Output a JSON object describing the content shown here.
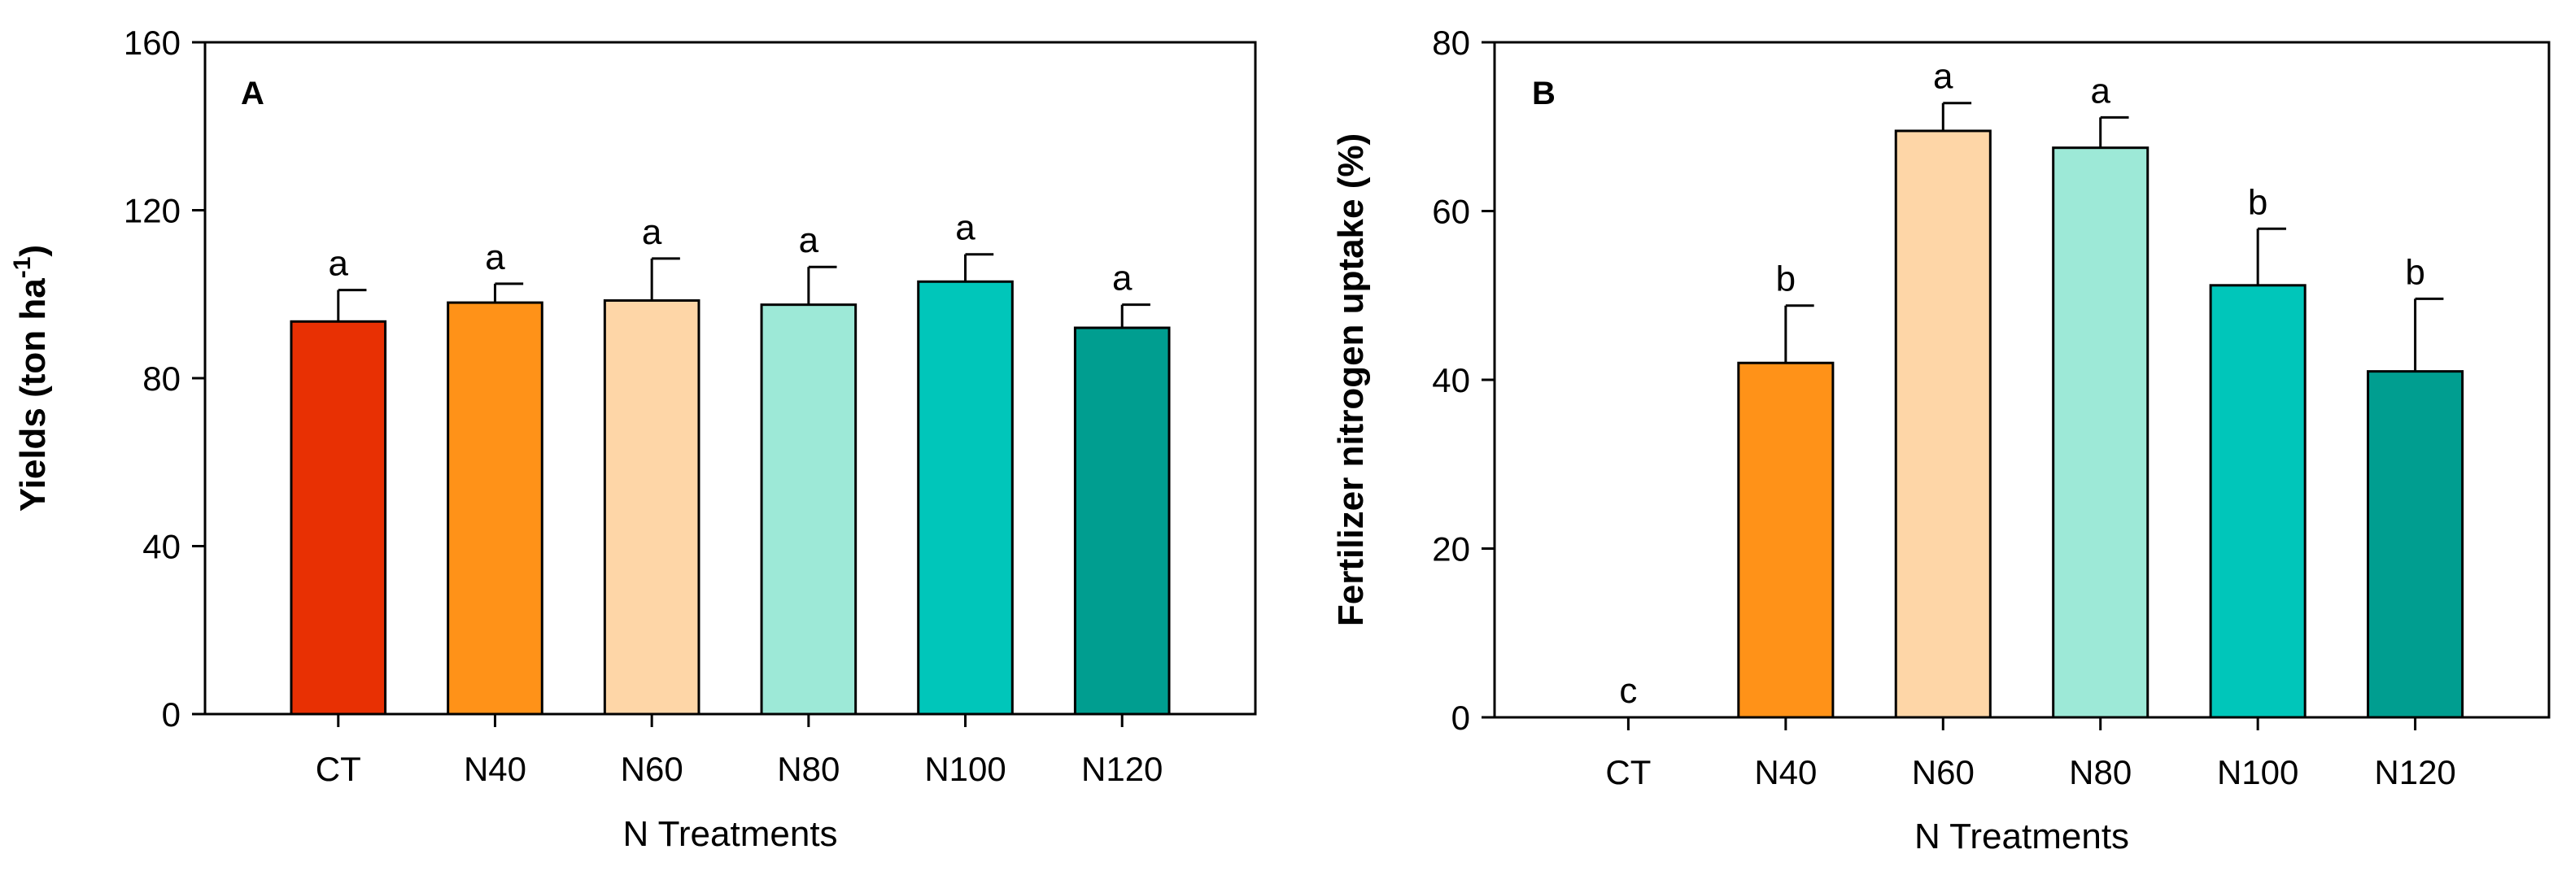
{
  "chart_data": [
    {
      "type": "bar",
      "panel_label": "A",
      "title": "",
      "xlabel": "N Treatments",
      "ylabel_main": "Yields (ton ha",
      "ylabel_sup": "-1",
      "ylabel_end": ")",
      "ylim": [
        0,
        160
      ],
      "yticks": [
        0,
        40,
        80,
        120,
        160
      ],
      "categories": [
        "CT",
        "N40",
        "N60",
        "N80",
        "N100",
        "N120"
      ],
      "values": [
        93.5,
        98,
        98.5,
        97.5,
        103,
        92
      ],
      "errors": [
        7.5,
        4.5,
        10,
        9,
        6.5,
        5.5
      ],
      "letters": [
        "a",
        "a",
        "a",
        "a",
        "a",
        "a"
      ],
      "colors": [
        "#e83003",
        "#ff9218",
        "#fed6a7",
        "#9de9d7",
        "#00c6ba",
        "#009e90"
      ]
    },
    {
      "type": "bar",
      "panel_label": "B",
      "title": "",
      "xlabel": "N Treatments",
      "ylabel_main": "Fertilizer nitrogen uptake (%)",
      "ylabel_sup": "",
      "ylabel_end": "",
      "ylim": [
        0,
        80
      ],
      "yticks": [
        0,
        20,
        40,
        60,
        80
      ],
      "categories": [
        "CT",
        "N40",
        "N60",
        "N80",
        "N100",
        "N120"
      ],
      "values": [
        0,
        42,
        69.5,
        67.5,
        51.2,
        41
      ],
      "errors": [
        0,
        6.8,
        3.3,
        3.6,
        6.7,
        8.6
      ],
      "letters": [
        "c",
        "b",
        "a",
        "a",
        "b",
        "b"
      ],
      "colors": [
        "#e83003",
        "#ff9218",
        "#fed6a7",
        "#9de9d7",
        "#00c6ba",
        "#009e90"
      ]
    }
  ]
}
